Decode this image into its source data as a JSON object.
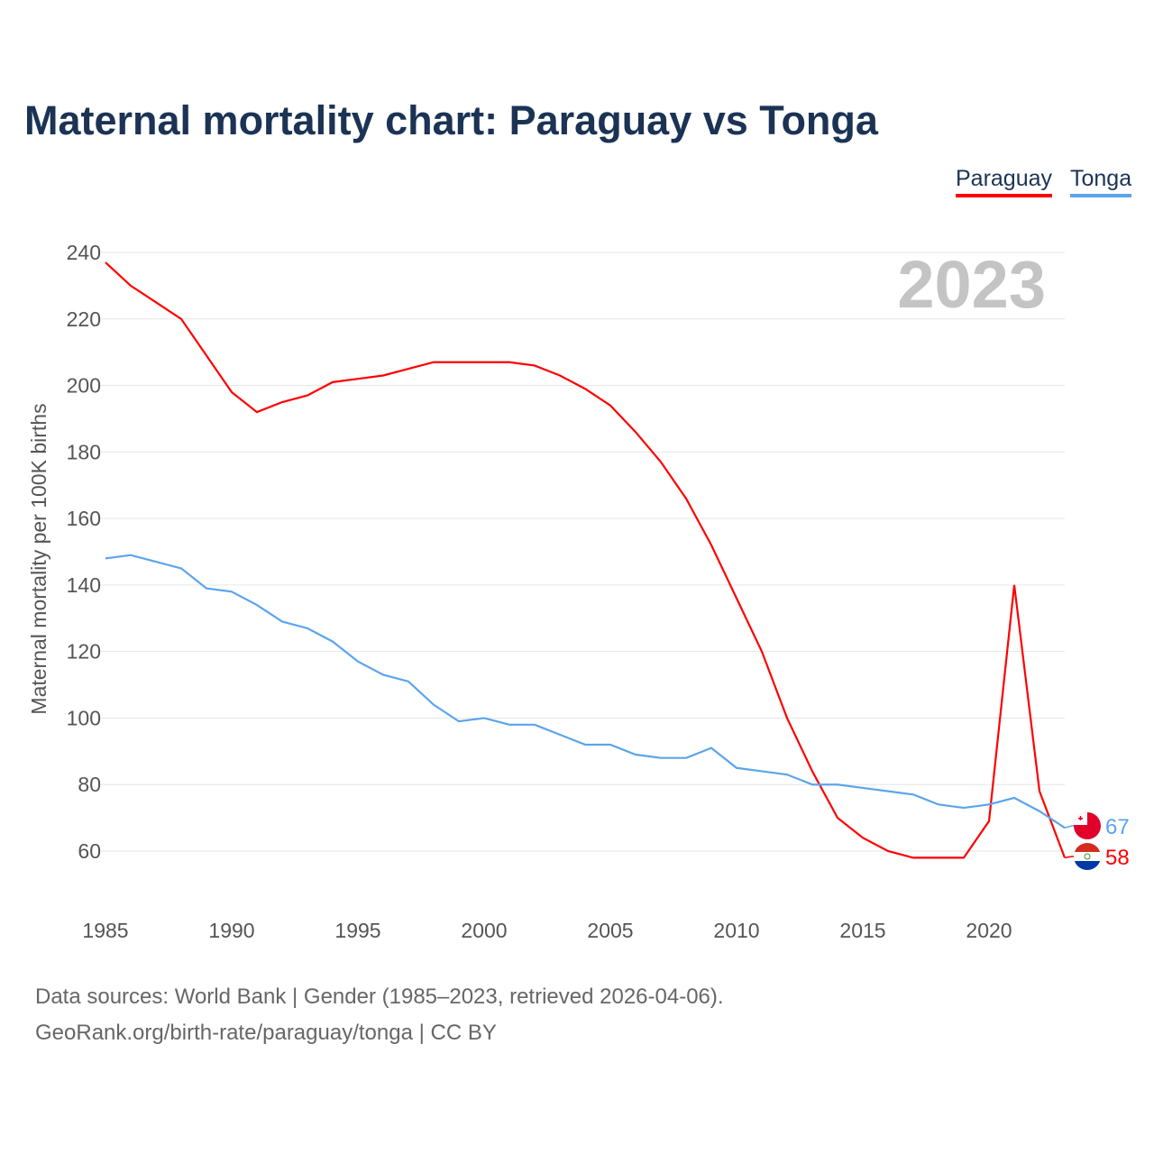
{
  "title": "Maternal mortality chart: Paraguay vs Tonga",
  "year_label": "2023",
  "footer": {
    "line1": "Data sources: World Bank | Gender (1985–2023, retrieved 2026-04-06).",
    "line2": "GeoRank.org/birth-rate/paraguay/tonga | CC BY"
  },
  "chart_data": {
    "type": "line",
    "title": "Maternal mortality chart: Paraguay vs Tonga",
    "xlabel": "",
    "ylabel": "Maternal mortality per 100K births",
    "xlim": [
      1985,
      2023
    ],
    "ylim": [
      50,
      240
    ],
    "x_ticks": [
      1985,
      1990,
      1995,
      2000,
      2005,
      2010,
      2015,
      2020
    ],
    "y_ticks": [
      60,
      80,
      100,
      120,
      140,
      160,
      180,
      200,
      220,
      240
    ],
    "grid": true,
    "legend_position": "top-right",
    "x": [
      1985,
      1986,
      1987,
      1988,
      1989,
      1990,
      1991,
      1992,
      1993,
      1994,
      1995,
      1996,
      1997,
      1998,
      1999,
      2000,
      2001,
      2002,
      2003,
      2004,
      2005,
      2006,
      2007,
      2008,
      2009,
      2010,
      2011,
      2012,
      2013,
      2014,
      2015,
      2016,
      2017,
      2018,
      2019,
      2020,
      2021,
      2022,
      2023
    ],
    "series": [
      {
        "name": "Paraguay",
        "color": "#ff0000",
        "end_label": "58",
        "values": [
          237,
          230,
          225,
          220,
          209,
          198,
          192,
          195,
          197,
          201,
          202,
          203,
          205,
          207,
          207,
          207,
          207,
          206,
          203,
          199,
          194,
          186,
          177,
          166,
          152,
          136,
          120,
          100,
          84,
          70,
          64,
          60,
          58,
          58,
          58,
          69,
          140,
          78,
          58
        ]
      },
      {
        "name": "Tonga",
        "color": "#5ba4ec",
        "end_label": "67",
        "values": [
          148,
          149,
          147,
          145,
          139,
          138,
          134,
          129,
          127,
          123,
          117,
          113,
          111,
          104,
          99,
          100,
          98,
          98,
          95,
          92,
          92,
          89,
          88,
          88,
          91,
          85,
          84,
          83,
          80,
          80,
          79,
          78,
          77,
          74,
          73,
          74,
          76,
          72,
          67
        ]
      }
    ]
  }
}
